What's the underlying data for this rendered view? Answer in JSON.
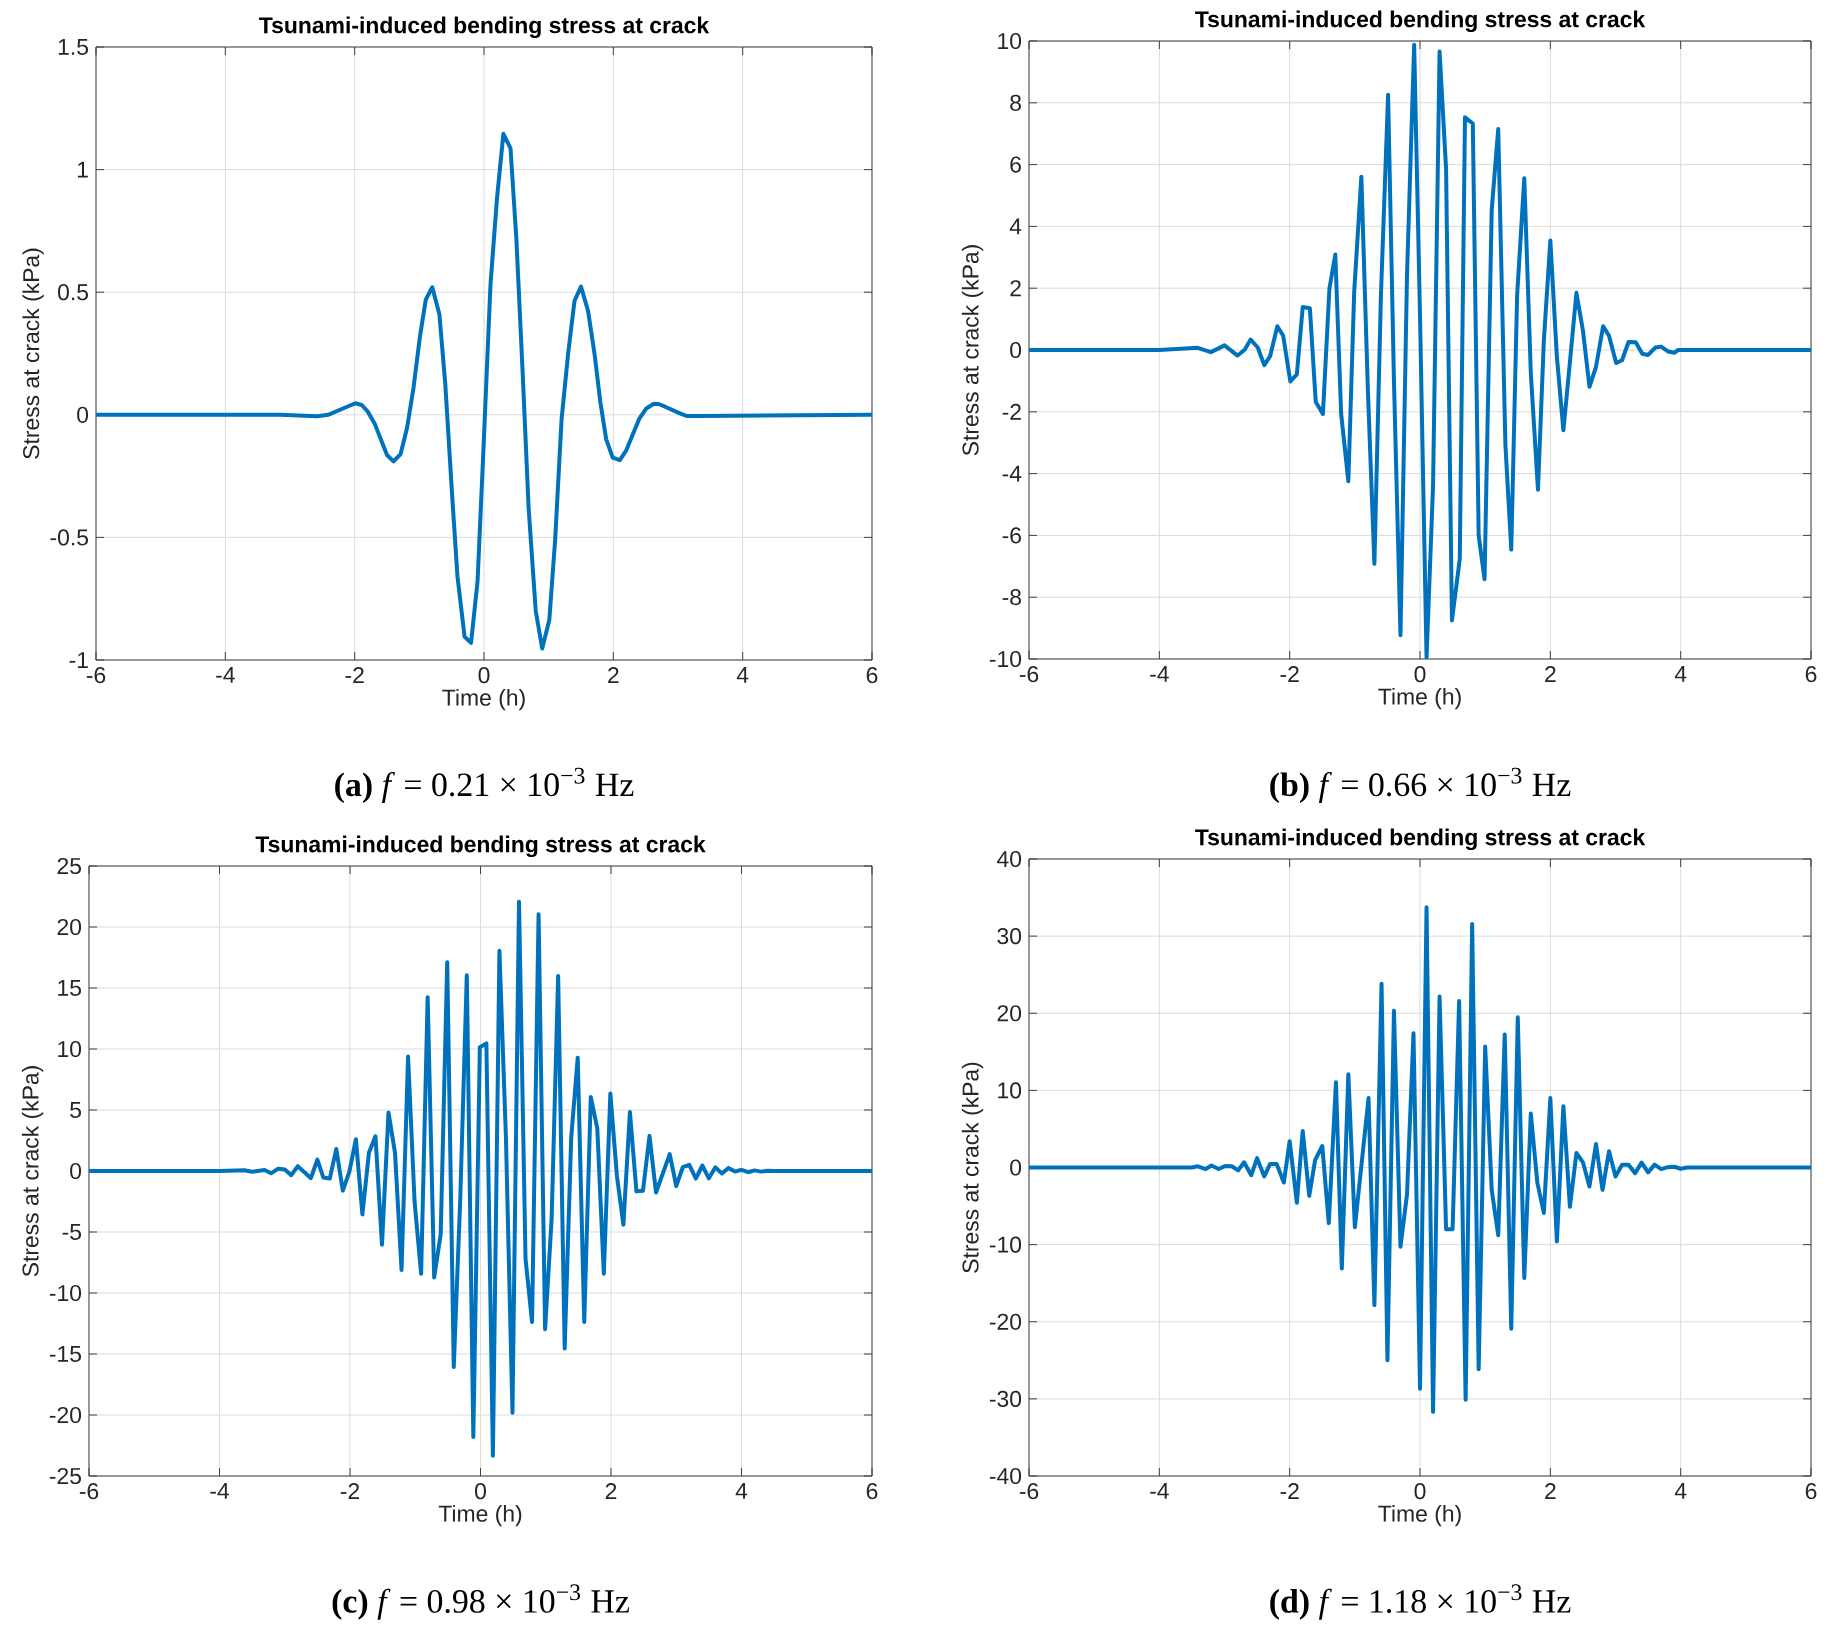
{
  "chart_data": [
    {
      "type": "line",
      "title": "Tsunami-induced bending stress at crack",
      "xlabel": "Time (h)",
      "ylabel": "Stress at crack (kPa)",
      "color": "#0072bd",
      "grid": true,
      "xlim": [
        -6,
        6
      ],
      "ylim": [
        -1,
        1.5
      ],
      "xticks": [
        -6,
        -4,
        -2,
        0,
        2,
        4,
        6
      ],
      "yticks": [
        -1,
        -0.5,
        0,
        0.5,
        1,
        1.5
      ],
      "x": [
        -6,
        -3.15,
        -2.58,
        -2.41,
        -2.09,
        -1.99,
        -1.89,
        -1.8,
        -1.69,
        -1.5,
        -1.4,
        -1.29,
        -1.19,
        -1.09,
        -0.99,
        -0.9,
        -0.8,
        -0.69,
        -0.6,
        -0.49,
        -0.41,
        -0.3,
        -0.2,
        -0.1,
        -0.01,
        0.1,
        0.2,
        0.3,
        0.41,
        0.5,
        0.6,
        0.69,
        0.8,
        0.9,
        1.01,
        1.1,
        1.2,
        1.3,
        1.4,
        1.5,
        1.61,
        1.71,
        1.8,
        1.89,
        1.99,
        2.1,
        2.2,
        2.4,
        2.51,
        2.62,
        2.7,
        2.8,
        3.03,
        3.14,
        3.34,
        6
      ],
      "values": [
        0,
        0,
        -0.006,
        0,
        0.036,
        0.047,
        0.04,
        0.014,
        -0.036,
        -0.164,
        -0.19,
        -0.16,
        -0.054,
        0.11,
        0.32,
        0.47,
        0.52,
        0.41,
        0.13,
        -0.34,
        -0.66,
        -0.905,
        -0.93,
        -0.68,
        -0.15,
        0.53,
        0.88,
        1.146,
        1.087,
        0.72,
        0.16,
        -0.38,
        -0.8,
        -0.953,
        -0.837,
        -0.51,
        -0.017,
        0.247,
        0.465,
        0.523,
        0.423,
        0.247,
        0.05,
        -0.1,
        -0.175,
        -0.185,
        -0.145,
        -0.017,
        0.026,
        0.044,
        0.044,
        0.033,
        0.006,
        -0.005,
        -0.005,
        0
      ],
      "annotations": [
        "**(a)** *f* = 0.21 × 10$^{−3}$ Hz"
      ]
    },
    {
      "type": "line",
      "title": "Tsunami-induced bending stress at crack",
      "xlabel": "Time (h)",
      "ylabel": "Stress at crack (kPa)",
      "color": "#0072bd",
      "grid": true,
      "xlim": [
        -6,
        6
      ],
      "ylim": [
        -10,
        10
      ],
      "xticks": [
        -6,
        -4,
        -2,
        0,
        2,
        4,
        6
      ],
      "yticks": [
        -10,
        -8,
        -6,
        -4,
        -2,
        0,
        2,
        4,
        6,
        8,
        10
      ],
      "x": [
        -6,
        -4.0,
        -3.41,
        -3.21,
        -3.0,
        -2.8,
        -2.69,
        -2.6,
        -2.49,
        -2.39,
        -2.3,
        -2.19,
        -2.1,
        -1.99,
        -1.89,
        -1.8,
        -1.69,
        -1.6,
        -1.49,
        -1.39,
        -1.3,
        -1.21,
        -1.1,
        -1.01,
        -0.9,
        -0.8,
        -0.7,
        -0.6,
        -0.49,
        -0.4,
        -0.3,
        -0.2,
        -0.09,
        0.0,
        0.1,
        0.2,
        0.3,
        0.4,
        0.49,
        0.61,
        0.69,
        0.81,
        0.9,
        0.99,
        1.1,
        1.2,
        1.31,
        1.4,
        1.49,
        1.6,
        1.7,
        1.81,
        1.9,
        2.0,
        2.1,
        2.2,
        2.29,
        2.4,
        2.5,
        2.6,
        2.7,
        2.81,
        2.9,
        3.01,
        3.1,
        3.2,
        3.31,
        3.41,
        3.5,
        3.61,
        3.7,
        3.81,
        3.9,
        3.96,
        6
      ],
      "values": [
        0,
        0,
        0.07,
        -0.07,
        0.15,
        -0.18,
        0.01,
        0.34,
        0.08,
        -0.49,
        -0.2,
        0.77,
        0.46,
        -1.02,
        -0.79,
        1.39,
        1.35,
        -1.68,
        -2.07,
        1.99,
        3.09,
        -2.07,
        -4.25,
        1.89,
        5.61,
        -1.3,
        -6.92,
        1.76,
        8.26,
        -1.0,
        -9.23,
        2.4,
        9.88,
        1.1,
        -9.95,
        -4.39,
        9.66,
        5.85,
        -8.75,
        -6.76,
        7.53,
        7.33,
        -6.0,
        -7.42,
        4.53,
        7.15,
        -3.06,
        -6.46,
        1.76,
        5.56,
        -0.75,
        -4.52,
        0.3,
        3.54,
        -0.22,
        -2.6,
        -0.62,
        1.85,
        0.63,
        -1.19,
        -0.55,
        0.77,
        0.46,
        -0.42,
        -0.33,
        0.26,
        0.25,
        -0.12,
        -0.16,
        0.08,
        0.11,
        -0.05,
        -0.09,
        0,
        0
      ],
      "annotations": [
        "**(b)** *f* = 0.66 × 10$^{−3}$ Hz"
      ]
    },
    {
      "type": "line",
      "title": "Tsunami-induced bending stress at crack",
      "xlabel": "Time (h)",
      "ylabel": "Stress at crack (kPa)",
      "color": "#0072bd",
      "grid": true,
      "xlim": [
        -6,
        6
      ],
      "ylim": [
        -25,
        25
      ],
      "xticks": [
        -6,
        -4,
        -2,
        0,
        2,
        4,
        6
      ],
      "yticks": [
        -25,
        -20,
        -15,
        -10,
        -5,
        0,
        5,
        10,
        15,
        20,
        25
      ],
      "x": [
        -6,
        -4.0,
        -3.62,
        -3.5,
        -3.31,
        -3.21,
        -3.1,
        -3.0,
        -2.9,
        -2.8,
        -2.6,
        -2.5,
        -2.41,
        -2.31,
        -2.21,
        -2.11,
        -2.01,
        -1.91,
        -1.81,
        -1.71,
        -1.61,
        -1.51,
        -1.41,
        -1.31,
        -1.21,
        -1.11,
        -1.01,
        -0.91,
        -0.81,
        -0.71,
        -0.61,
        -0.51,
        -0.41,
        -0.31,
        -0.21,
        -0.11,
        -0.01,
        0.09,
        0.19,
        0.29,
        0.39,
        0.49,
        0.59,
        0.69,
        0.79,
        0.89,
        0.99,
        1.09,
        1.19,
        1.29,
        1.39,
        1.49,
        1.59,
        1.69,
        1.79,
        1.89,
        1.99,
        2.09,
        2.19,
        2.29,
        2.39,
        2.49,
        2.59,
        2.69,
        2.9,
        3.0,
        3.1,
        3.2,
        3.3,
        3.4,
        3.5,
        3.6,
        3.7,
        3.8,
        3.9,
        4.0,
        4.1,
        4.2,
        4.3,
        4.4,
        4.5,
        6
      ],
      "values": [
        0,
        0,
        0.06,
        -0.06,
        0.09,
        -0.19,
        0.19,
        0.12,
        -0.34,
        0.4,
        -0.59,
        0.93,
        -0.53,
        -0.62,
        1.8,
        -1.61,
        -0.06,
        2.6,
        -3.56,
        1.49,
        2.85,
        -6.04,
        4.8,
        1.49,
        -8.11,
        9.38,
        -2.54,
        -8.42,
        14.24,
        -8.73,
        -5.17,
        17.12,
        -16.07,
        -2.23,
        16.04,
        -21.8,
        10.15,
        10.46,
        -23.34,
        18.05,
        2.72,
        -19.81,
        22.07,
        -7.18,
        -12.38,
        21.05,
        -12.97,
        -3.93,
        15.98,
        -14.55,
        2.72,
        9.29,
        -12.38,
        6.07,
        3.5,
        -8.42,
        6.35,
        -0.37,
        -4.4,
        4.83,
        -1.67,
        -1.61,
        2.88,
        -1.76,
        1.39,
        -1.24,
        0.31,
        0.5,
        -0.62,
        0.45,
        -0.6,
        0.3,
        -0.2,
        0.25,
        -0.05,
        0.1,
        -0.1,
        0.05,
        -0.05,
        0.02,
        0,
        0
      ],
      "annotations": [
        "**(c)** *f* = 0.98 × 10$^{−3}$ Hz"
      ]
    },
    {
      "type": "line",
      "title": "Tsunami-induced bending stress at crack",
      "xlabel": "Time (h)",
      "ylabel": "Stress at crack (kPa)",
      "color": "#0072bd",
      "grid": true,
      "xlim": [
        -6,
        6
      ],
      "ylim": [
        -40,
        40
      ],
      "xticks": [
        -6,
        -4,
        -2,
        0,
        2,
        4,
        6
      ],
      "yticks": [
        -40,
        -30,
        -20,
        -10,
        0,
        10,
        20,
        30,
        40
      ],
      "x": [
        -6,
        -3.5,
        -3.41,
        -3.29,
        -3.2,
        -3.09,
        -2.99,
        -2.89,
        -2.79,
        -2.7,
        -2.59,
        -2.5,
        -2.39,
        -2.3,
        -2.2,
        -2.09,
        -2.0,
        -1.89,
        -1.8,
        -1.7,
        -1.61,
        -1.5,
        -1.4,
        -1.29,
        -1.2,
        -1.1,
        -1.0,
        -0.79,
        -0.7,
        -0.59,
        -0.5,
        -0.4,
        -0.3,
        -0.2,
        -0.1,
        0.0,
        0.1,
        0.2,
        0.3,
        0.4,
        0.5,
        0.6,
        0.7,
        0.8,
        0.9,
        1.0,
        1.1,
        1.2,
        1.3,
        1.4,
        1.5,
        1.6,
        1.7,
        1.8,
        1.9,
        2.0,
        2.1,
        2.2,
        2.3,
        2.4,
        2.5,
        2.6,
        2.7,
        2.8,
        2.9,
        3.0,
        3.1,
        3.2,
        3.3,
        3.4,
        3.5,
        3.6,
        3.7,
        3.8,
        3.9,
        4.0,
        4.1,
        4.26,
        6
      ],
      "values": [
        0,
        0,
        0.16,
        -0.2,
        0.26,
        -0.2,
        0.2,
        0.16,
        -0.37,
        0.68,
        -1.0,
        1.21,
        -1.16,
        0.47,
        0.47,
        -1.95,
        3.42,
        -4.58,
        4.74,
        -3.68,
        0.95,
        2.79,
        -7.21,
        11.05,
        -13.1,
        12.1,
        -7.74,
        9.0,
        -17.84,
        23.84,
        -25.0,
        20.32,
        -10.26,
        -3.53,
        17.42,
        -28.68,
        33.74,
        -31.68,
        22.16,
        -8.0,
        -8.0,
        21.58,
        -30.1,
        31.58,
        -26.16,
        15.68,
        -2.89,
        -8.79,
        17.26,
        -20.9,
        19.47,
        -14.32,
        7.0,
        -1.95,
        -5.89,
        9.0,
        -9.58,
        7.95,
        -5.1,
        1.89,
        0.68,
        -2.47,
        3.05,
        -2.89,
        2.1,
        -1.16,
        0.37,
        0.37,
        -0.74,
        0.63,
        -0.63,
        0.37,
        -0.21,
        0.05,
        0.1,
        -0.16,
        0,
        0,
        0
      ],
      "annotations": [
        "**(d)** *f* = 1.18 × 10$^{−3}$ Hz"
      ]
    }
  ]
}
